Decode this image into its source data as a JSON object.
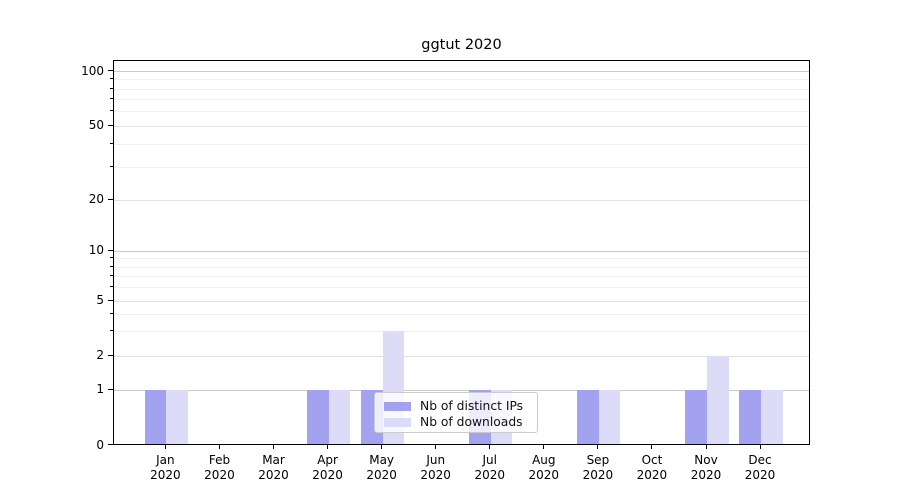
{
  "chart_data": {
    "type": "bar",
    "title": "ggtut 2020",
    "months": [
      "Jan",
      "Feb",
      "Mar",
      "Apr",
      "May",
      "Jun",
      "Jul",
      "Aug",
      "Sep",
      "Oct",
      "Nov",
      "Dec"
    ],
    "year": "2020",
    "series": [
      {
        "name": "Nb of distinct IPs",
        "color": "#a2a2f0",
        "values": [
          1,
          0,
          0,
          1,
          1,
          0,
          1,
          0,
          1,
          0,
          1,
          1
        ]
      },
      {
        "name": "Nb of downloads",
        "color": "#dcdcf8",
        "values": [
          1,
          0,
          0,
          1,
          3,
          0,
          1,
          0,
          1,
          0,
          2,
          1
        ]
      }
    ],
    "y_axis": {
      "ticks": [
        0,
        1,
        2,
        5,
        10,
        20,
        50,
        100
      ],
      "strong_grid_values": [
        1,
        10,
        100
      ],
      "mid_grid_values": [
        2,
        5,
        20,
        50
      ],
      "minor_grid_values": [
        3,
        4,
        6,
        7,
        8,
        9,
        30,
        40,
        60,
        70,
        80,
        90
      ],
      "scale": "symlog-like",
      "anchors": [
        [
          0,
          384.5
        ],
        [
          1,
          329
        ],
        [
          2,
          295
        ],
        [
          5,
          240
        ],
        [
          10,
          190
        ],
        [
          20,
          139
        ],
        [
          50,
          65
        ],
        [
          100,
          10.5
        ]
      ]
    },
    "x_axis": {
      "label_lines_per_month": 2
    },
    "legend": {
      "position": "lower center",
      "entries": [
        "Nb of distinct IPs",
        "Nb of downloads"
      ]
    },
    "grid": true
  }
}
